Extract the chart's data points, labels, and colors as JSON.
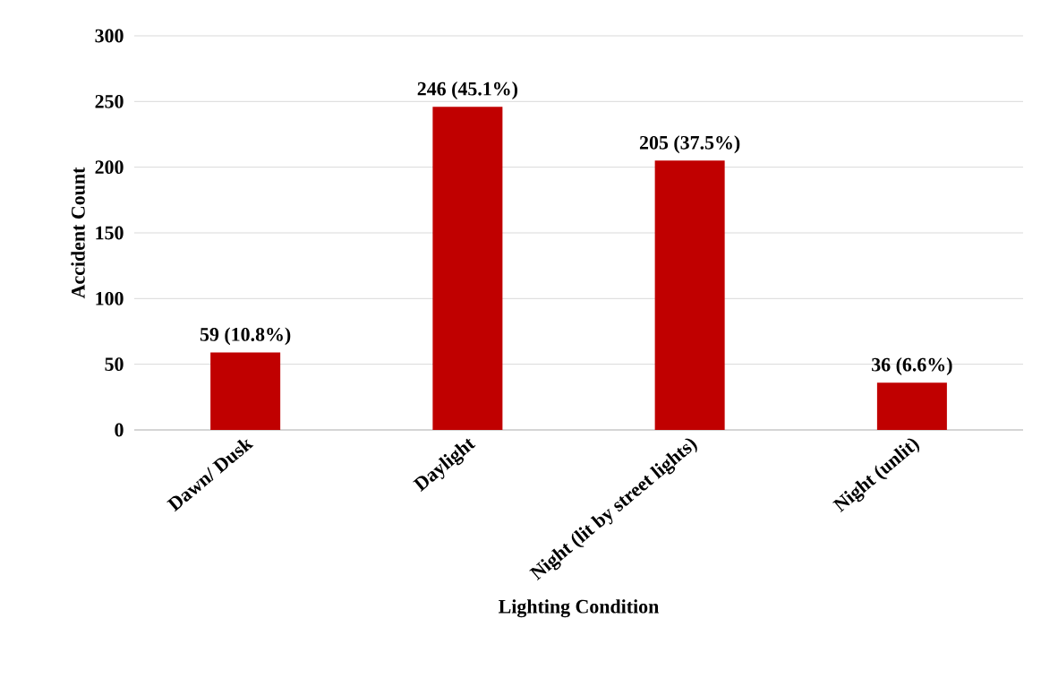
{
  "chart_data": {
    "type": "bar",
    "xlabel": "Lighting Condition",
    "ylabel": "Accident Count",
    "categories": [
      "Dawn/ Dusk",
      "Daylight",
      "Night (lit by street lights)",
      "Night (unlit)"
    ],
    "values": [
      59,
      246,
      205,
      36
    ],
    "value_labels": [
      "59 (10.8%)",
      "246 (45.1%)",
      "205 (37.5%)",
      "36 (6.6%)"
    ],
    "color": "#c00000",
    "ylim": [
      0,
      300
    ],
    "yticks": [
      0,
      50,
      100,
      150,
      200,
      250,
      300
    ],
    "grid": "y"
  }
}
